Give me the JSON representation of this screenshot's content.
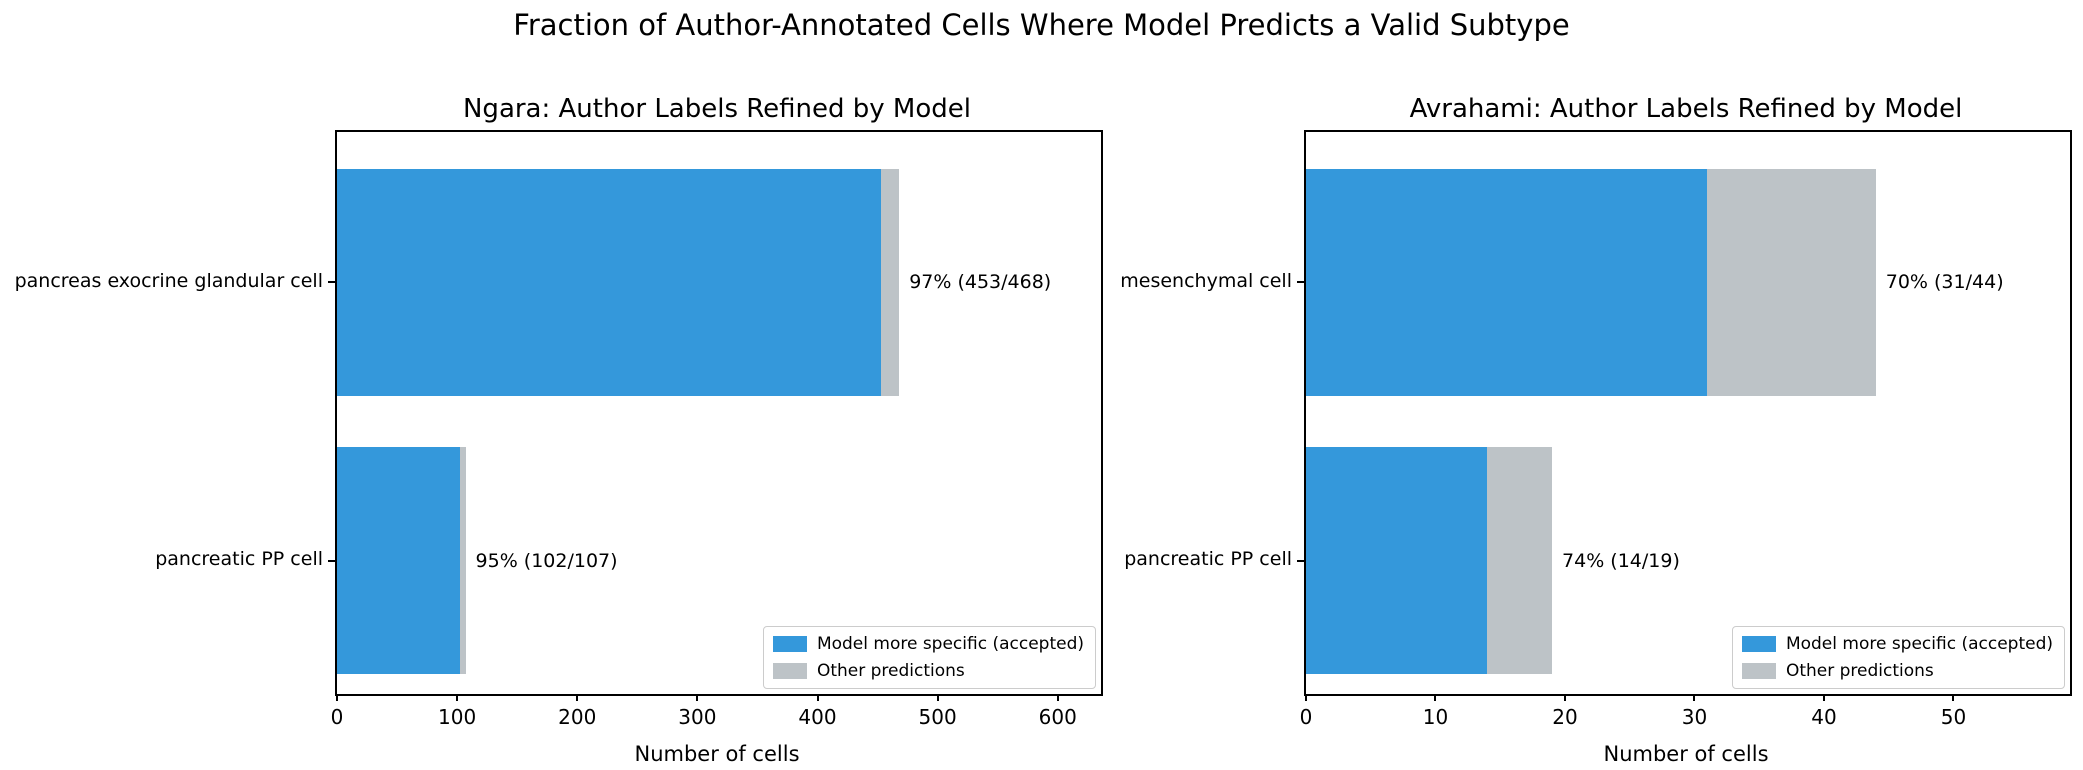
{
  "header": {
    "suptitle": "Fraction of Author-Annotated Cells Where Model Predicts a Valid Subtype"
  },
  "colors": {
    "accepted_blue": "#3498db",
    "other_gray": "#bdc3c7",
    "spine_black": "#000000",
    "legend_border": "#cccccc"
  },
  "chart_data": [
    {
      "type": "bar",
      "orientation": "horizontal",
      "title": "Ngara: Author Labels Refined by Model",
      "xlabel": "Number of cells",
      "categories": [
        "pancreas exocrine glandular cell",
        "pancreatic PP cell"
      ],
      "series": [
        {
          "name": "Model more specific (accepted)",
          "color": "#3498db",
          "values": [
            453,
            102
          ]
        },
        {
          "name": "Other predictions",
          "color": "#bdc3c7",
          "values": [
            15,
            5
          ]
        }
      ],
      "bar_labels": [
        "97% (453/468)",
        "95% (102/107)"
      ],
      "xticks": [
        0,
        100,
        200,
        300,
        400,
        500,
        600
      ],
      "xlim": [
        0,
        636
      ],
      "grid": false,
      "legend_position": "lower right"
    },
    {
      "type": "bar",
      "orientation": "horizontal",
      "title": "Avrahami: Author Labels Refined by Model",
      "xlabel": "Number of cells",
      "categories": [
        "mesenchymal cell",
        "pancreatic PP cell"
      ],
      "series": [
        {
          "name": "Model more specific (accepted)",
          "color": "#3498db",
          "values": [
            31,
            14
          ]
        },
        {
          "name": "Other predictions",
          "color": "#bdc3c7",
          "values": [
            13,
            5
          ]
        }
      ],
      "bar_labels": [
        "70% (31/44)",
        "74% (14/19)"
      ],
      "xticks": [
        0,
        10,
        20,
        30,
        40,
        50
      ],
      "xlim": [
        0,
        59
      ],
      "grid": false,
      "legend_position": "lower right"
    }
  ]
}
